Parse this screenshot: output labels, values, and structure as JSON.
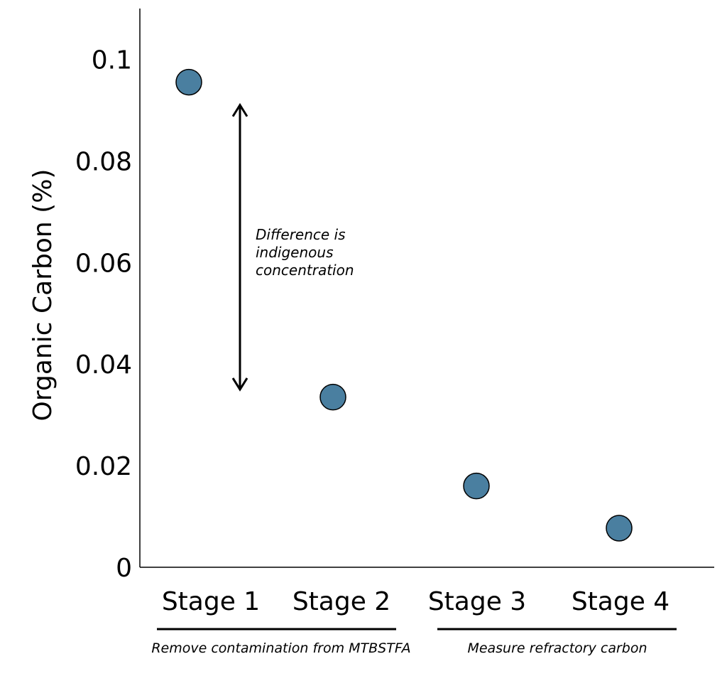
{
  "chart_data": {
    "type": "scatter",
    "ylabel": "Organic Carbon (%)",
    "ylim": [
      0,
      0.11
    ],
    "yticks": [
      "0",
      "0.02",
      "0.04",
      "0.06",
      "0.08",
      "0.1"
    ],
    "ytick_values": [
      0,
      0.02,
      0.04,
      0.06,
      0.08,
      0.1
    ],
    "categories": [
      "Stage 1",
      "Stage 2",
      "Stage 3",
      "Stage 4"
    ],
    "values": [
      0.0955,
      0.0335,
      0.016,
      0.0077
    ],
    "grid": false,
    "legend": "none",
    "marker_color": "#4a7fa0",
    "annotation": {
      "lines": [
        "Difference is",
        "indigenous",
        "concentration"
      ],
      "arrow_from": 0.091,
      "arrow_to": 0.035
    },
    "groups": [
      {
        "label": "Remove contamination from MTBSTFA",
        "stages": [
          "Stage 1",
          "Stage 2"
        ]
      },
      {
        "label": "Measure refractory carbon",
        "stages": [
          "Stage 3",
          "Stage 4"
        ]
      }
    ]
  }
}
